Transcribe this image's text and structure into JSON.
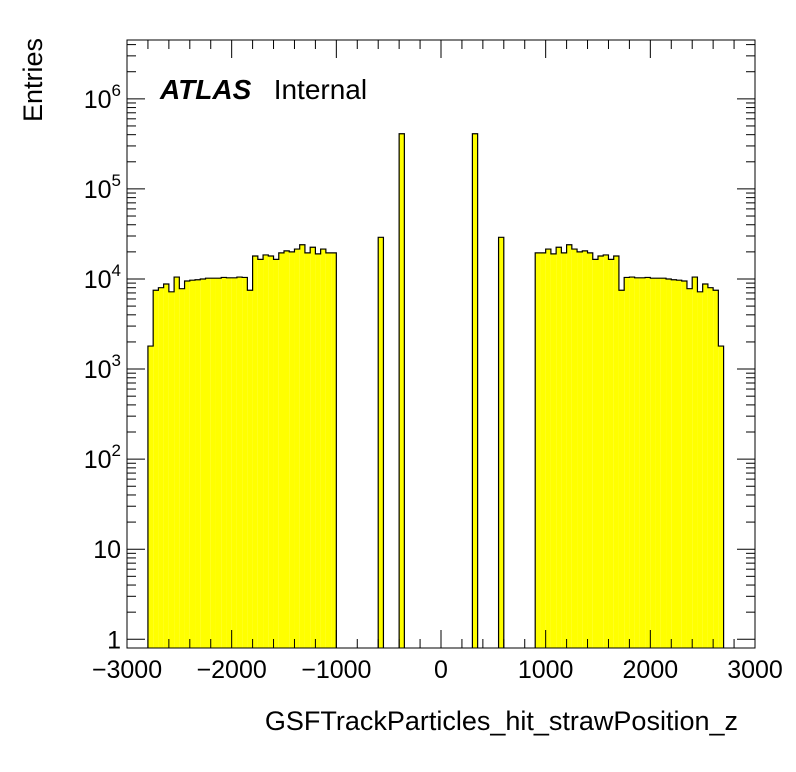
{
  "chart_data": {
    "type": "bar",
    "title": "",
    "xlabel": "GSFTrackParticles_hit_strawPosition_z",
    "ylabel": "Entries",
    "label_bold": "ATLAS",
    "label_plain": "Internal",
    "yscale": "log",
    "xlim": [
      -3000,
      3000
    ],
    "ylim": [
      0.8,
      4500000
    ],
    "bin_width": 100,
    "fill_color": "#ffff00",
    "x_ticks": [
      {
        "value": -3000,
        "label": "−3000"
      },
      {
        "value": -2000,
        "label": "−2000"
      },
      {
        "value": -1000,
        "label": "−1000"
      },
      {
        "value": 0,
        "label": "0"
      },
      {
        "value": 1000,
        "label": "1000"
      },
      {
        "value": 2000,
        "label": "2000"
      },
      {
        "value": 3000,
        "label": "3000"
      }
    ],
    "y_ticks": [
      {
        "value": 1,
        "base": "1",
        "exp": ""
      },
      {
        "value": 10,
        "base": "10",
        "exp": ""
      },
      {
        "value": 100,
        "base": "10",
        "exp": "2"
      },
      {
        "value": 1000,
        "base": "10",
        "exp": "3"
      },
      {
        "value": 10000,
        "base": "10",
        "exp": "4"
      },
      {
        "value": 100000,
        "base": "10",
        "exp": "5"
      },
      {
        "value": 1000000,
        "base": "10",
        "exp": "6"
      }
    ],
    "bins": [
      {
        "x": -2800,
        "y": 1800
      },
      {
        "x": -2750,
        "y": 7500
      },
      {
        "x": -2700,
        "y": 8000
      },
      {
        "x": -2650,
        "y": 8800
      },
      {
        "x": -2600,
        "y": 7200
      },
      {
        "x": -2550,
        "y": 10500
      },
      {
        "x": -2500,
        "y": 7800
      },
      {
        "x": -2450,
        "y": 9500
      },
      {
        "x": -2400,
        "y": 9700
      },
      {
        "x": -2350,
        "y": 9800
      },
      {
        "x": -2300,
        "y": 10000
      },
      {
        "x": -2250,
        "y": 10200
      },
      {
        "x": -2200,
        "y": 10200
      },
      {
        "x": -2150,
        "y": 10200
      },
      {
        "x": -2100,
        "y": 10400
      },
      {
        "x": -2050,
        "y": 10300
      },
      {
        "x": -2000,
        "y": 10300
      },
      {
        "x": -1950,
        "y": 10500
      },
      {
        "x": -1900,
        "y": 10400
      },
      {
        "x": -1850,
        "y": 7500
      },
      {
        "x": -1800,
        "y": 18000
      },
      {
        "x": -1750,
        "y": 16500
      },
      {
        "x": -1700,
        "y": 18500
      },
      {
        "x": -1650,
        "y": 18000
      },
      {
        "x": -1600,
        "y": 16500
      },
      {
        "x": -1550,
        "y": 19500
      },
      {
        "x": -1500,
        "y": 20500
      },
      {
        "x": -1450,
        "y": 20000
      },
      {
        "x": -1400,
        "y": 21500
      },
      {
        "x": -1350,
        "y": 24000
      },
      {
        "x": -1300,
        "y": 19500
      },
      {
        "x": -1250,
        "y": 22500
      },
      {
        "x": -1200,
        "y": 19000
      },
      {
        "x": -1150,
        "y": 21500
      },
      {
        "x": -1100,
        "y": 19500
      },
      {
        "x": -1050,
        "y": 19500
      },
      {
        "x": -600,
        "y": 29000
      },
      {
        "x": -400,
        "y": 410000
      },
      {
        "x": 300,
        "y": 410000
      },
      {
        "x": 550,
        "y": 29000
      },
      {
        "x": 900,
        "y": 19500
      },
      {
        "x": 950,
        "y": 19500
      },
      {
        "x": 1000,
        "y": 21500
      },
      {
        "x": 1050,
        "y": 19000
      },
      {
        "x": 1100,
        "y": 22500
      },
      {
        "x": 1150,
        "y": 19500
      },
      {
        "x": 1200,
        "y": 24000
      },
      {
        "x": 1250,
        "y": 21500
      },
      {
        "x": 1300,
        "y": 20000
      },
      {
        "x": 1350,
        "y": 20500
      },
      {
        "x": 1400,
        "y": 19500
      },
      {
        "x": 1450,
        "y": 16500
      },
      {
        "x": 1500,
        "y": 18000
      },
      {
        "x": 1550,
        "y": 18500
      },
      {
        "x": 1600,
        "y": 16500
      },
      {
        "x": 1650,
        "y": 18000
      },
      {
        "x": 1700,
        "y": 7500
      },
      {
        "x": 1750,
        "y": 10400
      },
      {
        "x": 1800,
        "y": 10500
      },
      {
        "x": 1850,
        "y": 10300
      },
      {
        "x": 1900,
        "y": 10300
      },
      {
        "x": 1950,
        "y": 10400
      },
      {
        "x": 2000,
        "y": 10200
      },
      {
        "x": 2050,
        "y": 10200
      },
      {
        "x": 2100,
        "y": 10200
      },
      {
        "x": 2150,
        "y": 10000
      },
      {
        "x": 2200,
        "y": 9800
      },
      {
        "x": 2250,
        "y": 9700
      },
      {
        "x": 2300,
        "y": 9500
      },
      {
        "x": 2350,
        "y": 7800
      },
      {
        "x": 2400,
        "y": 10500
      },
      {
        "x": 2450,
        "y": 7200
      },
      {
        "x": 2500,
        "y": 8800
      },
      {
        "x": 2550,
        "y": 8000
      },
      {
        "x": 2600,
        "y": 7500
      },
      {
        "x": 2650,
        "y": 1800
      }
    ]
  }
}
